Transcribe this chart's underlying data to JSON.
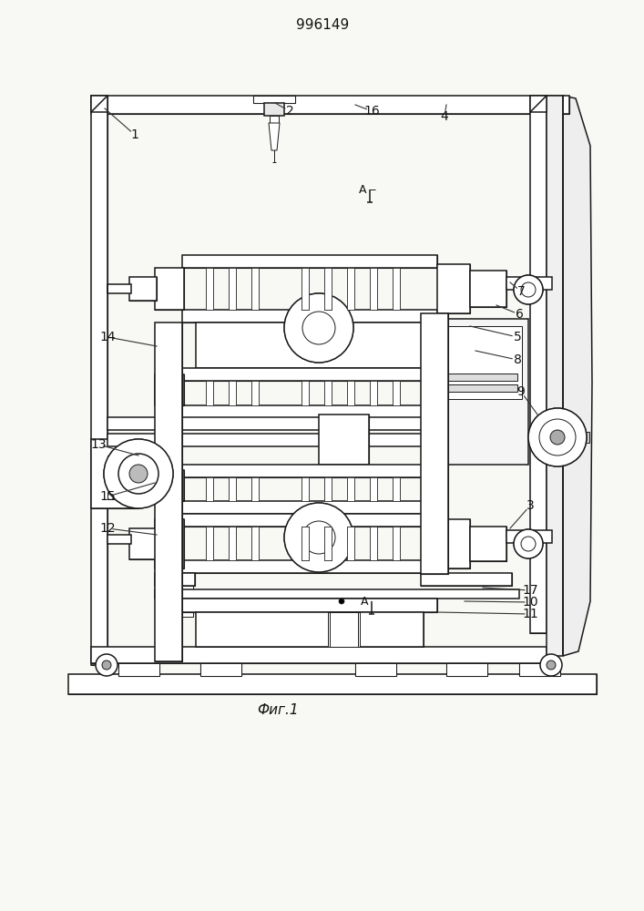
{
  "title": "996149",
  "fig_label": "Фиг.1",
  "bg_color": "#f8f8f4",
  "line_color": "#1a1a1a",
  "labels": [
    [
      "1",
      148,
      148
    ],
    [
      "2",
      318,
      122
    ],
    [
      "4",
      488,
      128
    ],
    [
      "16",
      408,
      122
    ],
    [
      "7",
      572,
      320
    ],
    [
      "6",
      570,
      345
    ],
    [
      "8",
      568,
      395
    ],
    [
      "5",
      568,
      370
    ],
    [
      "9",
      572,
      430
    ],
    [
      "3",
      582,
      555
    ],
    [
      "17",
      582,
      650
    ],
    [
      "10",
      582,
      663
    ],
    [
      "11",
      582,
      676
    ],
    [
      "12",
      118,
      580
    ],
    [
      "15",
      118,
      545
    ],
    [
      "13",
      108,
      488
    ],
    [
      "14",
      118,
      370
    ]
  ]
}
